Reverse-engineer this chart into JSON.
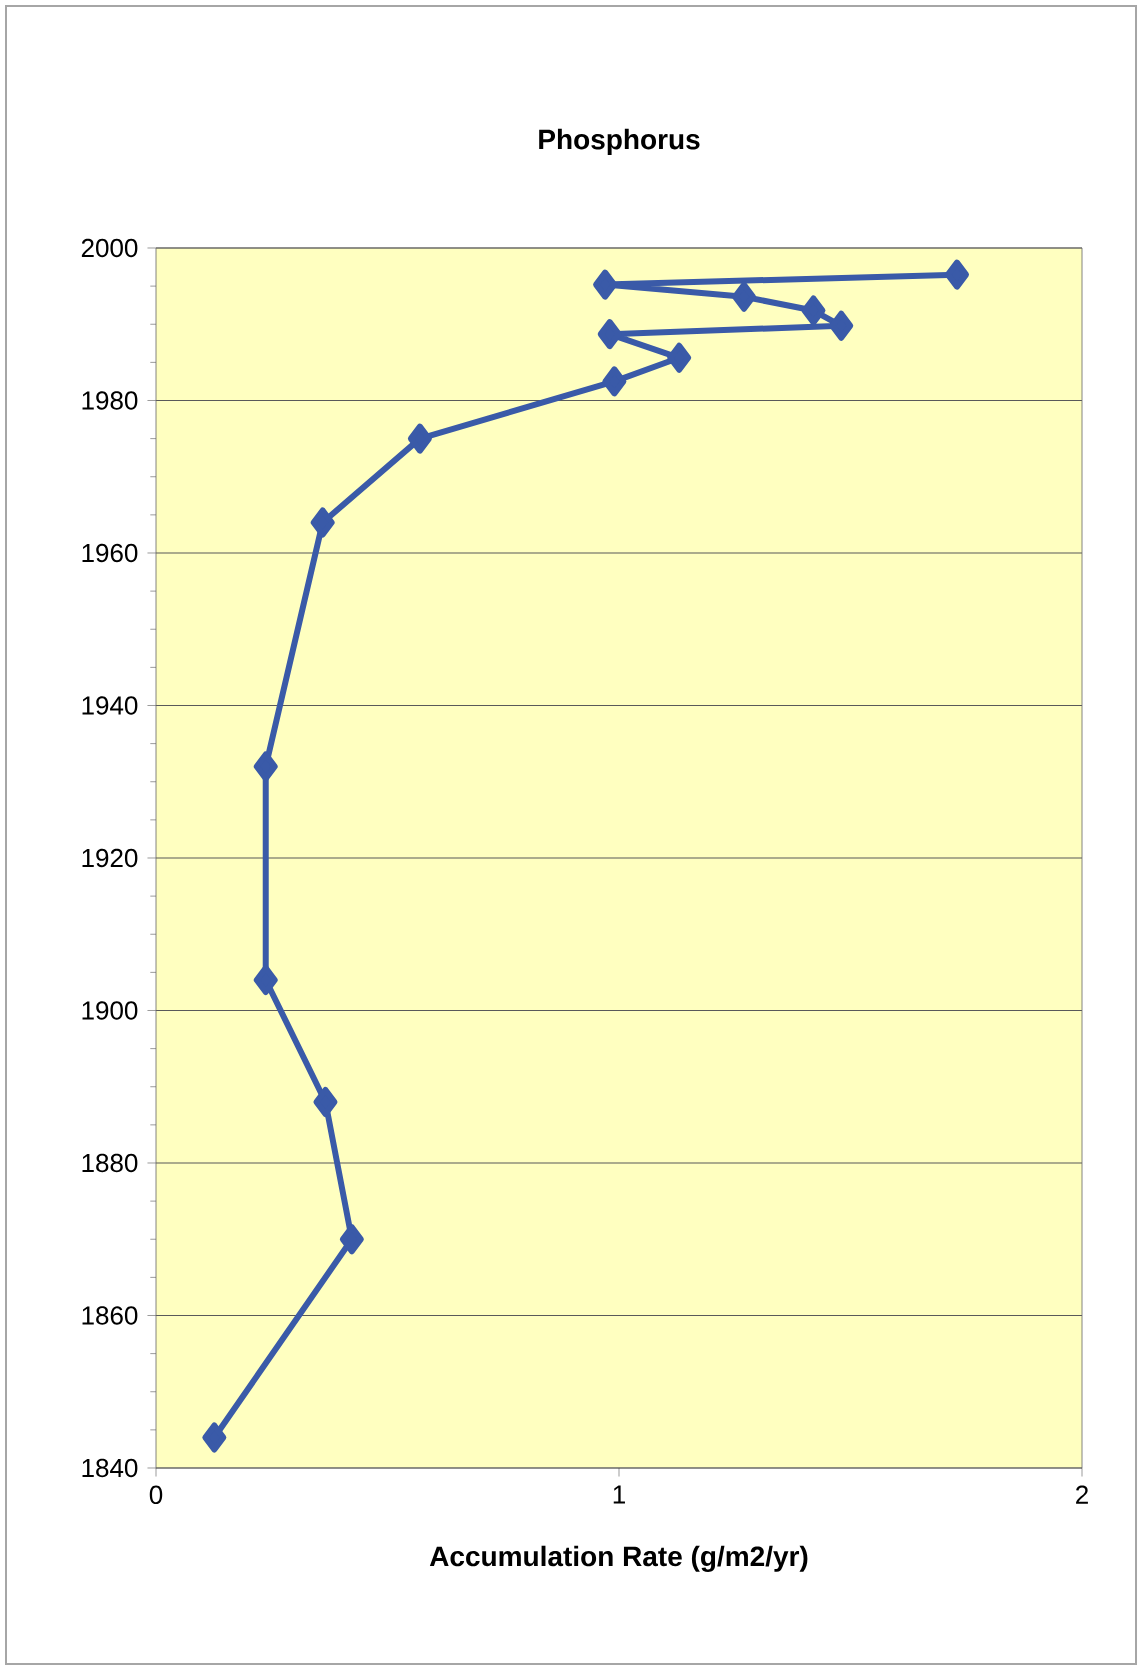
{
  "chart_data": {
    "type": "line",
    "title": "Phosphorus",
    "xlabel": "Accumulation Rate (g/m2/yr)",
    "x": [
      0.126,
      0.423,
      0.366,
      0.237,
      0.237,
      0.36,
      0.57,
      0.99,
      1.13,
      0.98,
      1.48,
      1.42,
      1.27,
      0.97,
      1.73
    ],
    "series": [
      {
        "color": "#3a5aa8",
        "values": [
          1844,
          1870,
          1888,
          1904,
          1932,
          1964,
          1975,
          1982.5,
          1985.6,
          1988.7,
          1989.8,
          1991.8,
          1993.6,
          1995.2,
          1996.5
        ]
      }
    ],
    "xlim": [
      0,
      2
    ],
    "xticks": [
      0,
      1,
      2
    ],
    "ylim": [
      1840,
      2000
    ],
    "yticks": [
      1840,
      1860,
      1880,
      1900,
      1920,
      1940,
      1960,
      1980,
      2000
    ],
    "grid": "y",
    "marker": "diamond",
    "line_style": "solid"
  }
}
